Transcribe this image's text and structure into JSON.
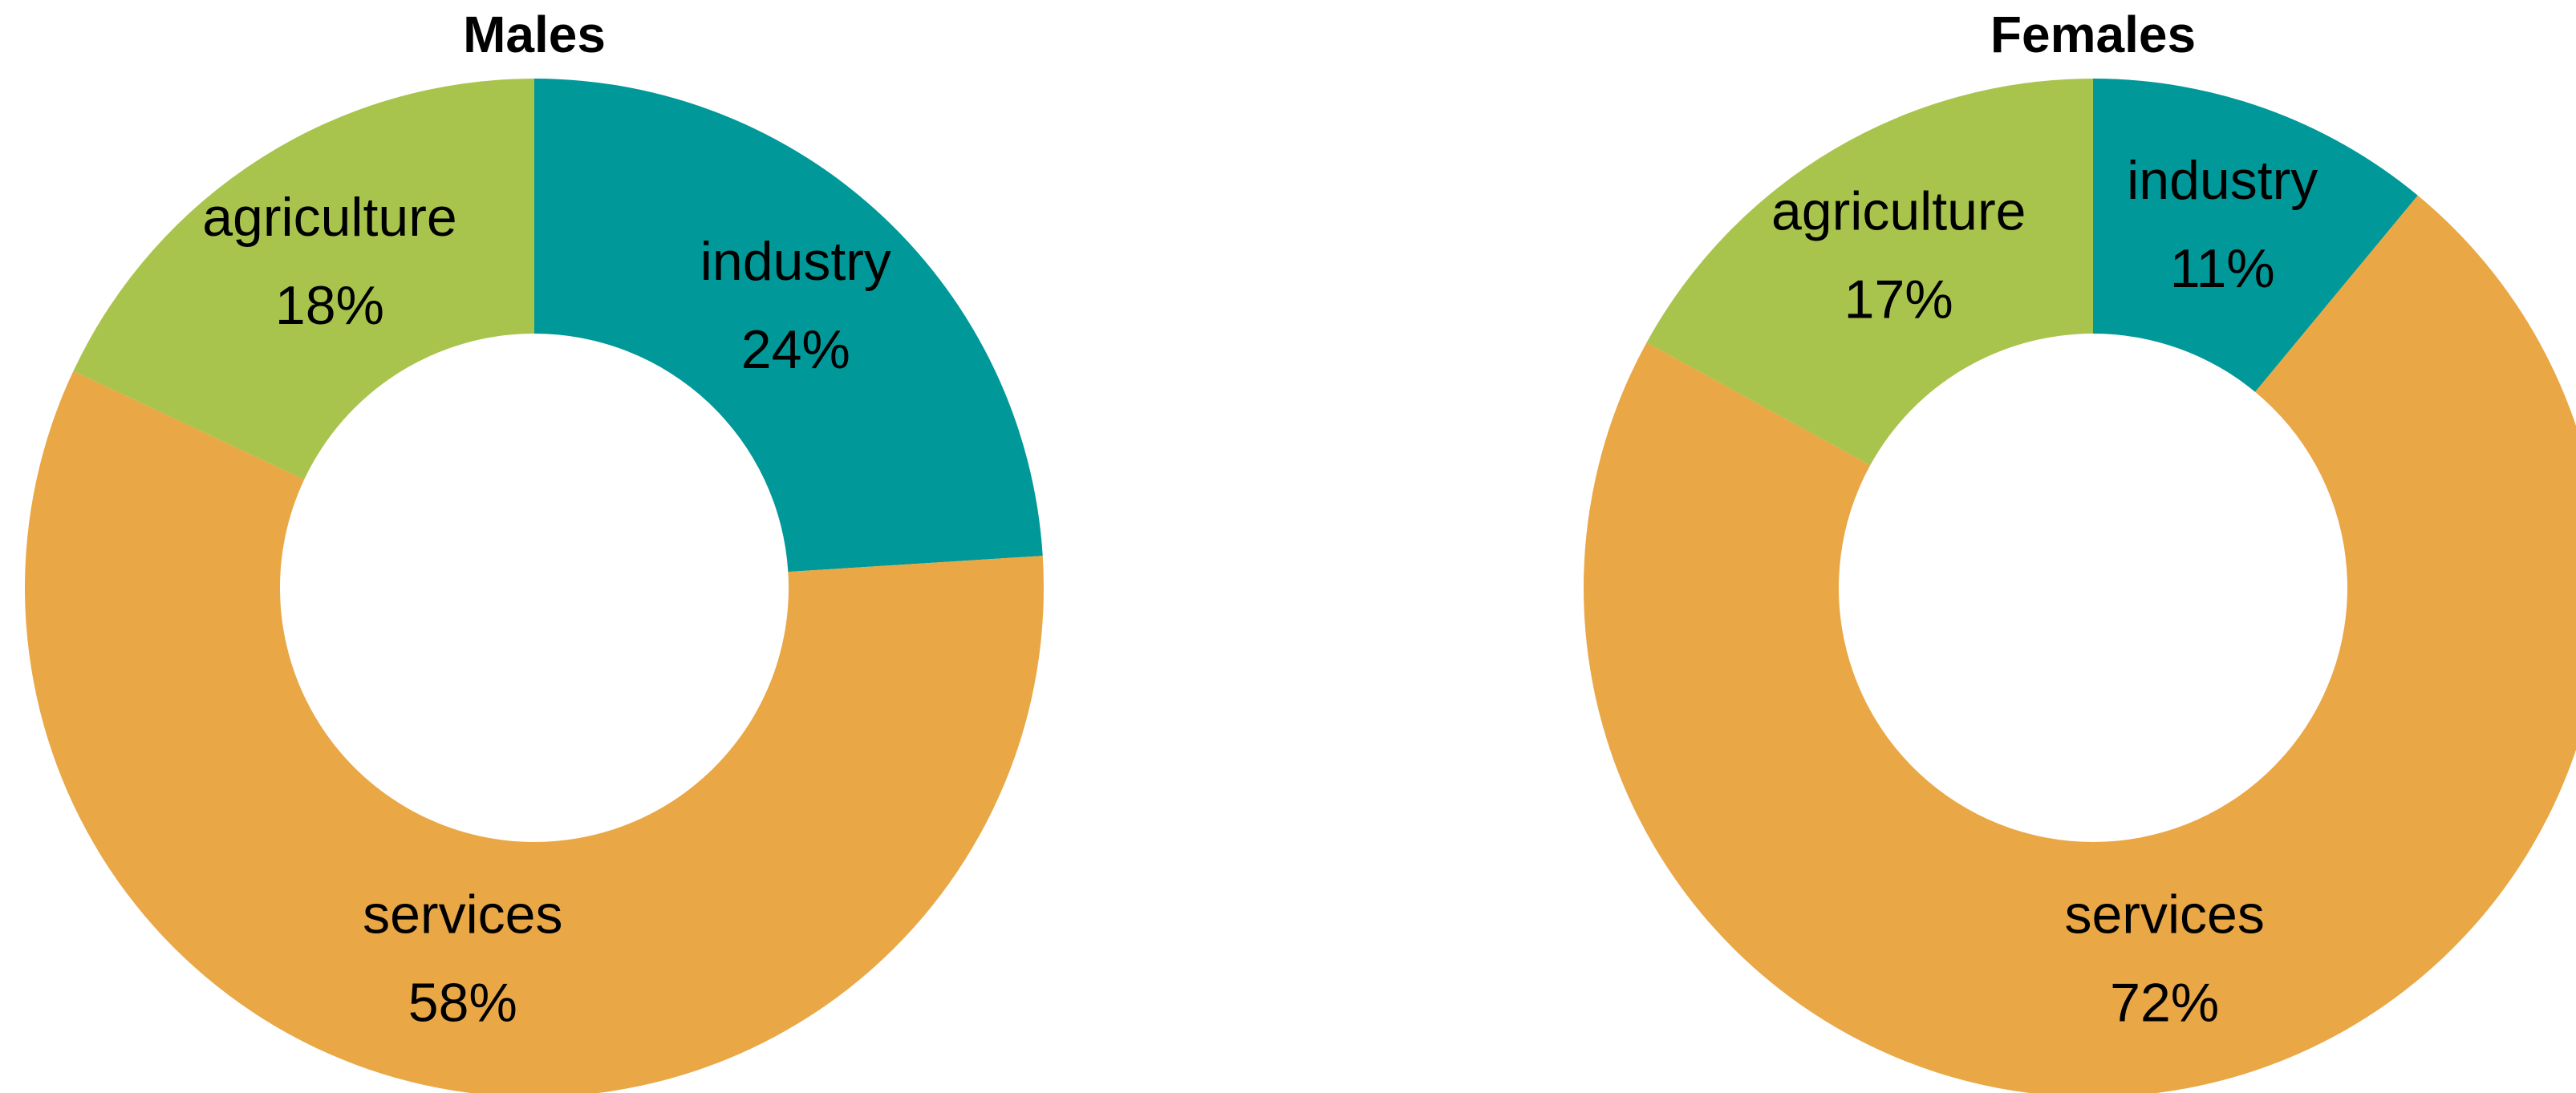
{
  "chart_data": [
    {
      "type": "donut",
      "title": "Males",
      "categories": [
        "industry",
        "services",
        "agriculture"
      ],
      "values": [
        24,
        58,
        18
      ],
      "value_labels": [
        "24%",
        "58%",
        "18%"
      ],
      "colors": [
        "#009898",
        "#e9a746",
        "#a9c44d"
      ]
    },
    {
      "type": "donut",
      "title": "Females",
      "categories": [
        "industry",
        "services",
        "agriculture"
      ],
      "values": [
        11,
        72,
        17
      ],
      "value_labels": [
        "11%",
        "72%",
        "17%"
      ],
      "colors": [
        "#009898",
        "#e9a746",
        "#a9c44d"
      ]
    }
  ]
}
